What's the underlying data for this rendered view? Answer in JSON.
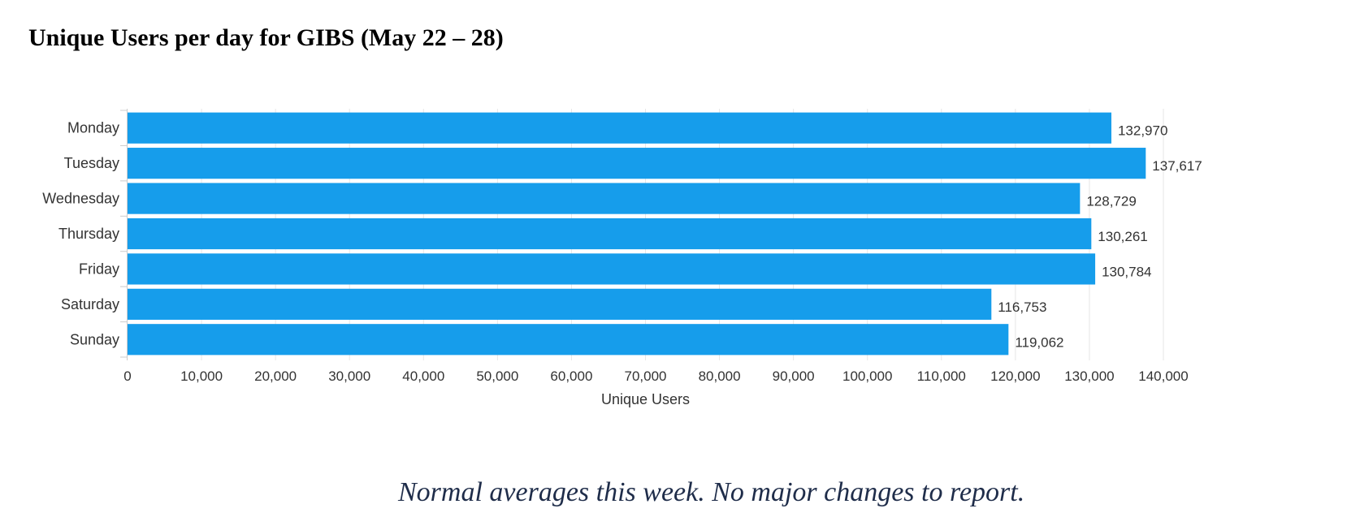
{
  "title": "Unique Users per day for GIBS (May 22 – 28)",
  "caption": "Normal averages this week.  No major changes to report.",
  "chart_data": {
    "type": "bar",
    "orientation": "horizontal",
    "categories": [
      "Monday",
      "Tuesday",
      "Wednesday",
      "Thursday",
      "Friday",
      "Saturday",
      "Sunday"
    ],
    "values": [
      132970,
      137617,
      128729,
      130261,
      130784,
      116753,
      119062
    ],
    "data_labels": [
      "132,970",
      "137,617",
      "128,729",
      "130,261",
      "130,784",
      "116,753",
      "119,062"
    ],
    "xlabel": "Unique Users",
    "ylabel": "",
    "xlim": [
      0,
      140000
    ],
    "x_ticks": [
      0,
      10000,
      20000,
      30000,
      40000,
      50000,
      60000,
      70000,
      80000,
      90000,
      100000,
      110000,
      120000,
      130000,
      140000
    ],
    "x_tick_labels": [
      "0",
      "10,000",
      "20,000",
      "30,000",
      "40,000",
      "50,000",
      "60,000",
      "70,000",
      "80,000",
      "90,000",
      "100,000",
      "110,000",
      "120,000",
      "130,000",
      "140,000"
    ],
    "grid": true,
    "legend": false,
    "bar_color": "#169deb",
    "grid_color": "#e6e6e6",
    "axis_color": "#cccccc"
  }
}
